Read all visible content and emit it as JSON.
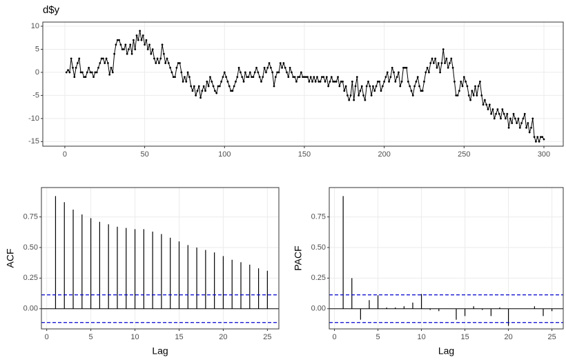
{
  "chart_data": [
    {
      "type": "line",
      "title": "d$y",
      "color": "#000000",
      "grid": true,
      "x": [
        1,
        2,
        3,
        4,
        5,
        6,
        7,
        8,
        9,
        10,
        11,
        12,
        13,
        14,
        15,
        16,
        17,
        18,
        19,
        20,
        21,
        22,
        23,
        24,
        25,
        26,
        27,
        28,
        29,
        30,
        31,
        32,
        33,
        34,
        35,
        36,
        37,
        38,
        39,
        40,
        41,
        42,
        43,
        44,
        45,
        46,
        47,
        48,
        49,
        50,
        51,
        52,
        53,
        54,
        55,
        56,
        57,
        58,
        59,
        60,
        61,
        62,
        63,
        64,
        65,
        66,
        67,
        68,
        69,
        70,
        71,
        72,
        73,
        74,
        75,
        76,
        77,
        78,
        79,
        80,
        81,
        82,
        83,
        84,
        85,
        86,
        87,
        88,
        89,
        90,
        91,
        92,
        93,
        94,
        95,
        96,
        97,
        98,
        99,
        100,
        101,
        102,
        103,
        104,
        105,
        106,
        107,
        108,
        109,
        110,
        111,
        112,
        113,
        114,
        115,
        116,
        117,
        118,
        119,
        120,
        121,
        122,
        123,
        124,
        125,
        126,
        127,
        128,
        129,
        130,
        131,
        132,
        133,
        134,
        135,
        136,
        137,
        138,
        139,
        140,
        141,
        142,
        143,
        144,
        145,
        146,
        147,
        148,
        149,
        150,
        151,
        152,
        153,
        154,
        155,
        156,
        157,
        158,
        159,
        160,
        161,
        162,
        163,
        164,
        165,
        166,
        167,
        168,
        169,
        170,
        171,
        172,
        173,
        174,
        175,
        176,
        177,
        178,
        179,
        180,
        181,
        182,
        183,
        184,
        185,
        186,
        187,
        188,
        189,
        190,
        191,
        192,
        193,
        194,
        195,
        196,
        197,
        198,
        199,
        200,
        201,
        202,
        203,
        204,
        205,
        206,
        207,
        208,
        209,
        210,
        211,
        212,
        213,
        214,
        215,
        216,
        217,
        218,
        219,
        220,
        221,
        222,
        223,
        224,
        225,
        226,
        227,
        228,
        229,
        230,
        231,
        232,
        233,
        234,
        235,
        236,
        237,
        238,
        239,
        240,
        241,
        242,
        243,
        244,
        245,
        246,
        247,
        248,
        249,
        250,
        251,
        252,
        253,
        254,
        255,
        256,
        257,
        258,
        259,
        260,
        261,
        262,
        263,
        264,
        265,
        266,
        267,
        268,
        269,
        270,
        271,
        272,
        273,
        274,
        275,
        276,
        277,
        278,
        279,
        280,
        281,
        282,
        283,
        284,
        285,
        286,
        287,
        288,
        289,
        290,
        291,
        292,
        293,
        294,
        295,
        296,
        297,
        298,
        299,
        300
      ],
      "values": [
        0,
        0.5,
        0,
        3,
        1,
        -1,
        1,
        2,
        3,
        0,
        0,
        -1,
        -1,
        0,
        1,
        0,
        0,
        -1,
        0,
        0,
        1,
        2,
        3,
        3,
        2,
        3,
        2,
        -0.5,
        1,
        0,
        4,
        6,
        7,
        7,
        6,
        5,
        5,
        6,
        4,
        5,
        6,
        4,
        7,
        5,
        8,
        7,
        9,
        7,
        8,
        6,
        7,
        5,
        6,
        4,
        5,
        3,
        2,
        3,
        2,
        3,
        6,
        4,
        2,
        3,
        2,
        1,
        0,
        -1,
        -1,
        1,
        2,
        2,
        0,
        -2,
        -1,
        -2,
        0,
        -1,
        -3,
        -4,
        -3,
        -5,
        -4,
        -3,
        -5.5,
        -4,
        -3,
        -4,
        -2,
        -3,
        -1,
        -2,
        -3,
        -4,
        -4.5,
        -3,
        -3,
        -2,
        -1,
        0,
        -1,
        -2,
        -3,
        -4,
        -4,
        -3,
        -2,
        -1,
        1,
        0,
        -1,
        -2,
        0,
        -1,
        -1,
        0,
        -1,
        -1,
        0,
        1,
        0,
        -1,
        -2,
        -1,
        1,
        0,
        1,
        2,
        1,
        0,
        -3,
        -1,
        0,
        0,
        2,
        1,
        2,
        1,
        0,
        -1,
        1,
        0,
        -1,
        -1,
        -2,
        -1,
        -1,
        0,
        -1,
        -1,
        -1,
        -1,
        -2,
        -1,
        -2,
        -1,
        -2,
        -1,
        -2,
        -2,
        -1,
        -1,
        -2,
        -1,
        -3,
        -2,
        -1,
        -2,
        -2,
        -2,
        -1,
        -3,
        -2,
        -2,
        -4,
        -3,
        -5,
        -6,
        -5,
        -2,
        -6,
        -3,
        -1,
        -5,
        -4,
        -3,
        -5,
        -6,
        -3,
        -2,
        -3,
        -5,
        -3,
        -4,
        -3,
        -2,
        -2,
        -4,
        -3,
        -2,
        -1,
        0,
        -2,
        -1,
        1,
        0,
        -2,
        -1,
        0,
        -3,
        -2,
        1,
        1,
        1,
        -2,
        -3,
        -4,
        -5,
        -3,
        -2,
        -1,
        -3,
        -4,
        -4,
        -2,
        0,
        1,
        0,
        2,
        3,
        2,
        3,
        1,
        2,
        0,
        2,
        5,
        2,
        3,
        1,
        2,
        3,
        1,
        -2,
        -5,
        -5,
        -4,
        -2,
        -3,
        -1,
        -2,
        -3,
        -5,
        -6,
        -4,
        -5,
        -3,
        -5,
        -3,
        -2,
        -5,
        -7,
        -6,
        -7,
        -8,
        -7,
        -9,
        -8,
        -10,
        -9,
        -8,
        -9,
        -10,
        -8,
        -9,
        -10,
        -9,
        -12,
        -10,
        -11,
        -9,
        -10,
        -11,
        -10,
        -12,
        -11,
        -10,
        -9,
        -12,
        -11,
        -13,
        -12,
        -10,
        -14,
        -15,
        -14,
        -15,
        -14,
        -14,
        -14.5
      ],
      "xlim": [
        -13.8,
        312.1
      ],
      "xticks": [
        0,
        50,
        100,
        150,
        200,
        250,
        300
      ],
      "ylim": [
        -16,
        10.9
      ],
      "yticks": [
        -15,
        -10,
        -5,
        0,
        5,
        10
      ]
    },
    {
      "type": "bar",
      "xlabel": "Lag",
      "ylabel": "ACF",
      "color": "#000000",
      "grid": true,
      "x": [
        1,
        2,
        3,
        4,
        5,
        6,
        7,
        8,
        9,
        10,
        11,
        12,
        13,
        14,
        15,
        16,
        17,
        18,
        19,
        20,
        21,
        22,
        23,
        24,
        25
      ],
      "values": [
        0.92,
        0.87,
        0.81,
        0.77,
        0.74,
        0.71,
        0.69,
        0.67,
        0.66,
        0.65,
        0.65,
        0.63,
        0.61,
        0.58,
        0.55,
        0.52,
        0.5,
        0.48,
        0.46,
        0.43,
        0.4,
        0.38,
        0.36,
        0.33,
        0.31
      ],
      "ci_lines": [
        0.113,
        -0.113
      ],
      "ci_color": "#0000cc",
      "xlim": [
        -0.6,
        26.3
      ],
      "xticks": [
        0,
        5,
        10,
        15,
        20,
        25
      ],
      "ylim": [
        -0.165,
        0.99
      ],
      "yticks": [
        {
          "value": 0,
          "label": "0.00"
        },
        0.25,
        {
          "value": 0.5,
          "label": "0.50"
        },
        0.75
      ]
    },
    {
      "type": "bar",
      "xlabel": "Lag",
      "ylabel": "PACF",
      "color": "#000000",
      "grid": true,
      "x": [
        1,
        2,
        3,
        4,
        5,
        6,
        7,
        8,
        9,
        10,
        11,
        12,
        13,
        14,
        15,
        16,
        17,
        18,
        19,
        20,
        21,
        22,
        23,
        24,
        25
      ],
      "values": [
        0.92,
        0.25,
        -0.09,
        0.07,
        0.11,
        0.01,
        0.01,
        0.02,
        0.05,
        0.12,
        -0.01,
        -0.02,
        0.0,
        -0.09,
        -0.06,
        0.02,
        -0.01,
        -0.06,
        0.01,
        -0.14,
        0.0,
        0.0,
        0.02,
        -0.06,
        -0.02
      ],
      "ci_lines": [
        0.113,
        -0.113
      ],
      "ci_color": "#0000cc",
      "xlim": [
        -0.6,
        26.3
      ],
      "xticks": [
        0,
        5,
        10,
        15,
        20,
        25
      ],
      "ylim": [
        -0.165,
        0.99
      ],
      "yticks": [
        {
          "value": 0,
          "label": "0.00"
        },
        0.25,
        {
          "value": 0.5,
          "label": "0.50"
        },
        0.75
      ]
    }
  ]
}
